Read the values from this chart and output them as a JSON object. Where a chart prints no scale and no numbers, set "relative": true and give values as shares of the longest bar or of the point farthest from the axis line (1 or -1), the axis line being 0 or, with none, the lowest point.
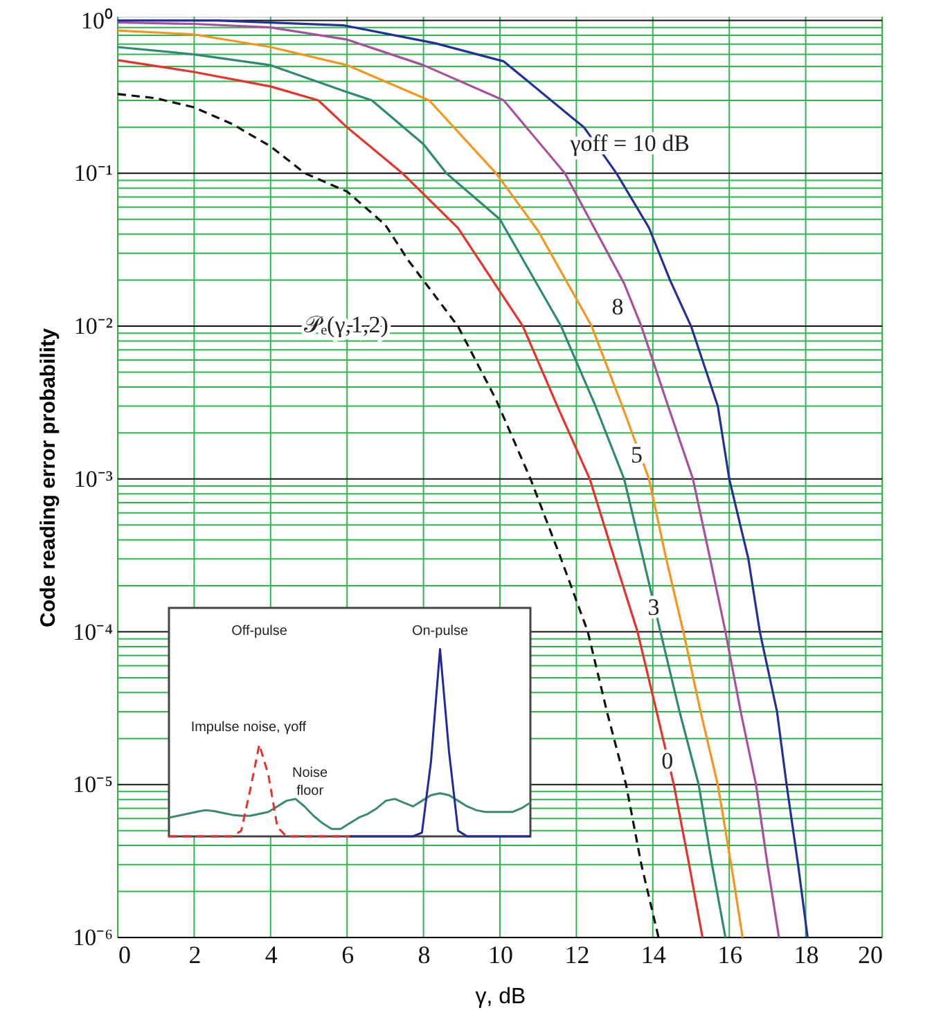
{
  "chart_data": [
    {
      "type": "line",
      "xlabel": "γ, dB",
      "ylabel": "Code reading error probability",
      "log": "y",
      "xlim": [
        0,
        20
      ],
      "xticks": [
        0,
        2,
        4,
        6,
        8,
        10,
        12,
        14,
        16,
        18,
        20
      ],
      "ylim": [
        1e-06,
        1.06
      ],
      "yticks": [
        {
          "value": 1e-06,
          "label": "10⁻⁶"
        },
        {
          "value": 2e-06,
          "label": null
        },
        {
          "value": 3e-06,
          "label": null
        },
        {
          "value": 4e-06,
          "label": null
        },
        {
          "value": 5e-06,
          "label": null
        },
        {
          "value": 6e-06,
          "label": null
        },
        {
          "value": 7e-06,
          "label": null
        },
        {
          "value": 8e-06,
          "label": null
        },
        {
          "value": 9e-06,
          "label": null
        },
        {
          "value": 1e-05,
          "label": "10⁻⁵"
        },
        {
          "value": 2e-05,
          "label": null
        },
        {
          "value": 3e-05,
          "label": null
        },
        {
          "value": 4e-05,
          "label": null
        },
        {
          "value": 5e-05,
          "label": null
        },
        {
          "value": 6e-05,
          "label": null
        },
        {
          "value": 7e-05,
          "label": null
        },
        {
          "value": 8e-05,
          "label": null
        },
        {
          "value": 9e-05,
          "label": null
        },
        {
          "value": 0.0001,
          "label": "10⁻⁴"
        },
        {
          "value": 0.0002,
          "label": null
        },
        {
          "value": 0.0003,
          "label": null
        },
        {
          "value": 0.0004,
          "label": null
        },
        {
          "value": 0.0005,
          "label": null
        },
        {
          "value": 0.0006,
          "label": null
        },
        {
          "value": 0.0007,
          "label": null
        },
        {
          "value": 0.0008,
          "label": null
        },
        {
          "value": 0.0009,
          "label": null
        },
        {
          "value": 0.001,
          "label": "10⁻³"
        },
        {
          "value": 0.002,
          "label": null
        },
        {
          "value": 0.003,
          "label": null
        },
        {
          "value": 0.004,
          "label": null
        },
        {
          "value": 0.005,
          "label": null
        },
        {
          "value": 0.006,
          "label": null
        },
        {
          "value": 0.007,
          "label": null
        },
        {
          "value": 0.008,
          "label": null
        },
        {
          "value": 0.009,
          "label": null
        },
        {
          "value": 0.01,
          "label": "10⁻²"
        },
        {
          "value": 0.02,
          "label": null
        },
        {
          "value": 0.03,
          "label": null
        },
        {
          "value": 0.04,
          "label": null
        },
        {
          "value": 0.05,
          "label": null
        },
        {
          "value": 0.06,
          "label": null
        },
        {
          "value": 0.07,
          "label": null
        },
        {
          "value": 0.08,
          "label": null
        },
        {
          "value": 0.09,
          "label": null
        },
        {
          "value": 0.1,
          "label": "10⁻¹"
        },
        {
          "value": 0.2,
          "label": null
        },
        {
          "value": 0.3,
          "label": null
        },
        {
          "value": 0.4,
          "label": null
        },
        {
          "value": 0.5,
          "label": null
        },
        {
          "value": 0.6,
          "label": null
        },
        {
          "value": 0.7,
          "label": null
        },
        {
          "value": 0.8,
          "label": null
        },
        {
          "value": 0.9,
          "label": null
        },
        {
          "value": 1,
          "label": "10⁰"
        }
      ],
      "grid": true,
      "series": [
        {
          "color": "#111111",
          "line_style": "dashed",
          "x": [
            0,
            1,
            2,
            3,
            4,
            4.9,
            6,
            7,
            7.6,
            8.9,
            9.9,
            10.8,
            11.6,
            12.3,
            12.8,
            13.3,
            13.7,
            14.15
          ],
          "values": [
            0.33,
            0.31,
            0.27,
            0.21,
            0.15,
            0.1,
            0.076,
            0.046,
            0.027,
            0.01,
            0.0033,
            0.001,
            0.0003,
            0.0001,
            3e-05,
            1e-05,
            3e-06,
            1e-06
          ]
        },
        {
          "color": "#e8312b",
          "x": [
            0,
            2,
            4,
            5.25,
            6,
            7.45,
            8.9,
            10.6,
            11.5,
            12.35,
            13.0,
            13.6,
            14.1,
            14.55,
            14.95,
            15.3
          ],
          "values": [
            0.55,
            0.46,
            0.37,
            0.3,
            0.2,
            0.1,
            0.044,
            0.01,
            0.003,
            0.001,
            0.0003,
            0.0001,
            3e-05,
            1e-05,
            3e-06,
            1e-06
          ]
        },
        {
          "color": "#2f8a74",
          "x": [
            0,
            2,
            4,
            6,
            6.65,
            8,
            8.6,
            10,
            11.6,
            12.5,
            13.25,
            13.75,
            14.2,
            14.7,
            15.2,
            15.55,
            15.9
          ],
          "values": [
            0.67,
            0.6,
            0.51,
            0.34,
            0.3,
            0.155,
            0.1,
            0.05,
            0.01,
            0.003,
            0.001,
            0.0003,
            0.0001,
            3e-05,
            1e-05,
            3e-06,
            1e-06
          ]
        },
        {
          "color": "#f7941d",
          "x": [
            0,
            2,
            4,
            6,
            8.15,
            9.9,
            11,
            12.4,
            13.2,
            13.9,
            14.35,
            14.8,
            15.25,
            15.7,
            16.05,
            16.35
          ],
          "values": [
            0.86,
            0.81,
            0.67,
            0.51,
            0.3,
            0.1,
            0.042,
            0.01,
            0.003,
            0.001,
            0.0003,
            0.0001,
            3e-05,
            1e-05,
            3e-06,
            1e-06
          ]
        },
        {
          "color": "#a84f9e",
          "x": [
            0,
            2,
            4,
            6,
            8,
            10.1,
            11.7,
            13.25,
            13.7,
            14.4,
            15.05,
            15.5,
            15.9,
            16.3,
            16.7,
            17.0,
            17.3
          ],
          "values": [
            0.97,
            0.95,
            0.9,
            0.75,
            0.51,
            0.3,
            0.1,
            0.019,
            0.01,
            0.003,
            0.001,
            0.0003,
            0.0001,
            3e-05,
            1e-05,
            3e-06,
            1e-06
          ]
        },
        {
          "color": "#22319a",
          "x": [
            0,
            2.6,
            5.9,
            8.3,
            10.1,
            11.9,
            12.2,
            13.05,
            13.9,
            14.45,
            15.0,
            15.7,
            16.0,
            16.5,
            16.8,
            17.25,
            17.5,
            17.8,
            18.05
          ],
          "values": [
            1.0,
            1.0,
            0.93,
            0.71,
            0.54,
            0.23,
            0.2,
            0.1,
            0.044,
            0.02,
            0.01,
            0.003,
            0.001,
            0.0003,
            0.0001,
            3e-05,
            1e-05,
            3e-06,
            1e-06
          ]
        }
      ],
      "line_style": "solid",
      "annotations": [
        "γoff = 10 dB",
        "8",
        "5",
        "3",
        "0",
        "𝒫ₑ(γ,1,2)"
      ]
    },
    {
      "type": "line",
      "relative": true,
      "line_style": "solid",
      "categories": [
        null,
        null,
        null,
        null,
        null,
        null,
        null,
        null,
        null,
        null,
        null,
        null,
        null,
        null,
        null,
        null,
        null,
        null,
        null,
        null,
        null,
        null,
        null,
        null,
        null,
        null,
        null,
        null,
        null,
        null,
        null,
        null,
        null,
        null,
        null,
        null,
        null,
        null,
        null,
        null,
        null
      ],
      "series": [
        {
          "color": "#3a8a6e",
          "values": [
            0.1,
            0.11,
            0.12,
            0.13,
            0.14,
            0.135,
            0.125,
            0.115,
            0.11,
            0.11,
            0.12,
            0.13,
            0.16,
            0.19,
            0.2,
            0.16,
            0.11,
            0.07,
            0.04,
            0.04,
            0.07,
            0.1,
            0.12,
            0.15,
            0.19,
            0.2,
            0.18,
            0.16,
            0.19,
            0.22,
            0.23,
            0.22,
            0.19,
            0.16,
            0.14,
            0.13,
            0.13,
            0.13,
            0.13,
            0.15,
            0.18
          ]
        },
        {
          "color": "#e8312b",
          "line_style": "dashed",
          "values": [
            0,
            0,
            0,
            0,
            0,
            0,
            0,
            0,
            0.03,
            0.25,
            0.49,
            0.33,
            0.05,
            0,
            0,
            0,
            0,
            0,
            0,
            0,
            0,
            null,
            null,
            null,
            null,
            null,
            null,
            null,
            null,
            null,
            null,
            null,
            null,
            null,
            null,
            null,
            null,
            null,
            null,
            null,
            null
          ]
        },
        {
          "color": "#1f2a9c",
          "values": [
            null,
            null,
            null,
            null,
            null,
            null,
            null,
            null,
            null,
            null,
            null,
            null,
            null,
            null,
            null,
            null,
            null,
            null,
            null,
            null,
            0,
            0,
            0,
            0,
            0,
            0,
            0,
            0,
            0.02,
            0.4,
            1,
            0.45,
            0.03,
            0,
            0,
            0,
            0,
            0,
            0,
            0,
            0
          ]
        }
      ],
      "annotations": [
        "Off-pulse",
        "On-pulse",
        "Impulse noise, γoff",
        "Noise\nfloor"
      ]
    }
  ]
}
